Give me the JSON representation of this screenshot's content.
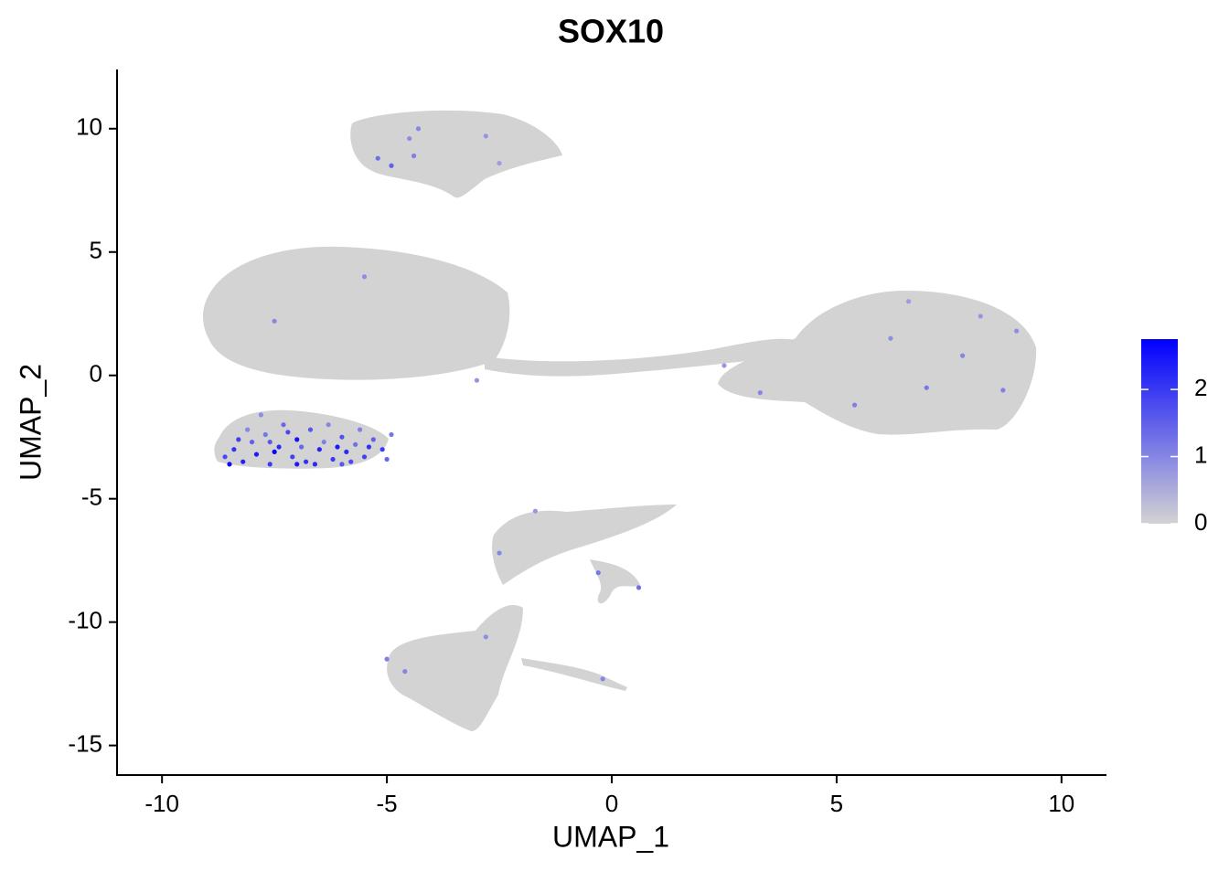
{
  "chart_data": {
    "type": "scatter",
    "title": "SOX10",
    "x_label": "UMAP_1",
    "y_label": "UMAP_2",
    "x": [
      -8.6,
      -8.4,
      -8.2,
      -8.0,
      -7.9,
      -7.7,
      -7.6,
      -7.4,
      -7.3,
      -7.1,
      -7.0,
      -6.8,
      -6.7,
      -6.5,
      -6.4,
      -6.2,
      -6.0,
      -5.9,
      -5.7,
      -5.5,
      -5.3,
      -5.1,
      -4.9,
      -8.5,
      -8.1,
      -7.8,
      -7.5,
      -7.2,
      -6.9,
      -6.6,
      -6.3,
      -6.1,
      -5.8,
      -5.6,
      -5.4,
      -7.6,
      -8.3,
      -7.0,
      -6.0,
      -5.0,
      -5.2,
      -4.9,
      -4.4,
      -4.3,
      -4.5,
      -2.8,
      -2.5,
      -7.5,
      -5.5,
      -3.0,
      2.5,
      3.3,
      5.4,
      6.2,
      7.0,
      7.8,
      8.7,
      8.2,
      6.6,
      9.0,
      -2.5,
      -1.7,
      -0.3,
      0.6,
      -5.0,
      -4.6,
      -2.8,
      -0.2
    ],
    "y": [
      -3.3,
      -3.0,
      -3.5,
      -2.7,
      -3.2,
      -2.4,
      -3.6,
      -2.9,
      -2.0,
      -3.3,
      -2.6,
      -3.5,
      -2.2,
      -3.0,
      -2.7,
      -3.4,
      -2.5,
      -3.1,
      -2.8,
      -3.3,
      -2.6,
      -3.0,
      -2.4,
      -3.6,
      -2.2,
      -1.6,
      -3.1,
      -2.3,
      -2.9,
      -3.6,
      -2.0,
      -2.9,
      -3.5,
      -2.2,
      -2.9,
      -2.7,
      -2.6,
      -3.6,
      -3.6,
      -3.4,
      8.8,
      8.5,
      8.9,
      10.0,
      9.6,
      9.7,
      8.6,
      2.2,
      4.0,
      -0.2,
      0.4,
      -0.7,
      -1.2,
      1.5,
      -0.5,
      0.8,
      -0.6,
      2.4,
      3.0,
      1.8,
      -7.2,
      -5.5,
      -8.0,
      -8.6,
      -11.5,
      -12.0,
      -10.6,
      -12.3
    ],
    "values": [
      1.8,
      2.1,
      2.3,
      1.5,
      2.4,
      1.2,
      2.0,
      2.2,
      1.4,
      1.9,
      2.5,
      2.1,
      1.6,
      2.3,
      1.1,
      2.0,
      1.7,
      2.2,
      1.3,
      1.9,
      1.5,
      2.0,
      1.2,
      2.6,
      1.0,
      0.9,
      2.7,
      1.8,
      1.4,
      2.2,
      1.0,
      2.4,
      1.8,
      1.1,
      2.1,
      1.6,
      1.9,
      2.4,
      1.6,
      1.4,
      1.3,
      1.5,
      1.1,
      1.0,
      0.9,
      0.8,
      0.7,
      1.0,
      0.9,
      0.8,
      0.8,
      1.0,
      1.1,
      0.9,
      1.2,
      1.0,
      1.1,
      0.8,
      0.7,
      0.9,
      1.0,
      0.8,
      1.2,
      1.3,
      1.1,
      1.0,
      0.9,
      1.0
    ],
    "xlim": [
      -11,
      11
    ],
    "ylim": [
      -16.2,
      12.4
    ],
    "xticks": [
      -10,
      -5,
      0,
      5,
      10
    ],
    "yticks": [
      -15,
      -10,
      -5,
      0,
      5,
      10
    ],
    "color_low": "#d3d3d3",
    "color_high": "#0000ff",
    "colorbar_lim": [
      0,
      2.75
    ],
    "colorbar_ticks": [
      0,
      1,
      2
    ]
  }
}
